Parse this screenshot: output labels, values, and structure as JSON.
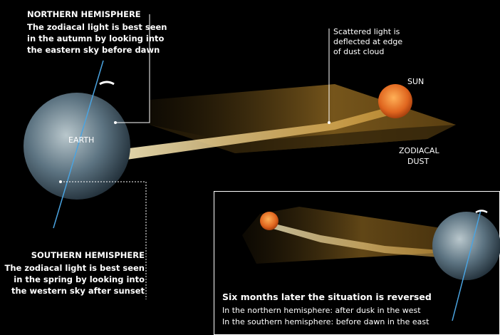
{
  "northern": {
    "heading": "NORTHERN HEMISPHERE",
    "lines": [
      "The zodiacal light is best seen",
      "in the autumn by looking into",
      "the eastern sky before dawn"
    ]
  },
  "scattered": {
    "lines": [
      "Scattered light is",
      "deflected at edge",
      "of dust cloud"
    ]
  },
  "sun_label": "SUN",
  "earth_label": "EARTH",
  "dust_label": [
    "ZODIACAL",
    "DUST"
  ],
  "southern": {
    "heading": "SOUTHERN HEMISPHERE",
    "lines": [
      "The zodiacal light is best seen",
      "in the spring by looking into",
      "the western sky after sunset"
    ]
  },
  "inset": {
    "heading": "Six months later the situation is reversed",
    "lines": [
      "In the northern hemisphere: after dusk in the west",
      "In the southern hemisphere: before dawn in the east"
    ]
  }
}
